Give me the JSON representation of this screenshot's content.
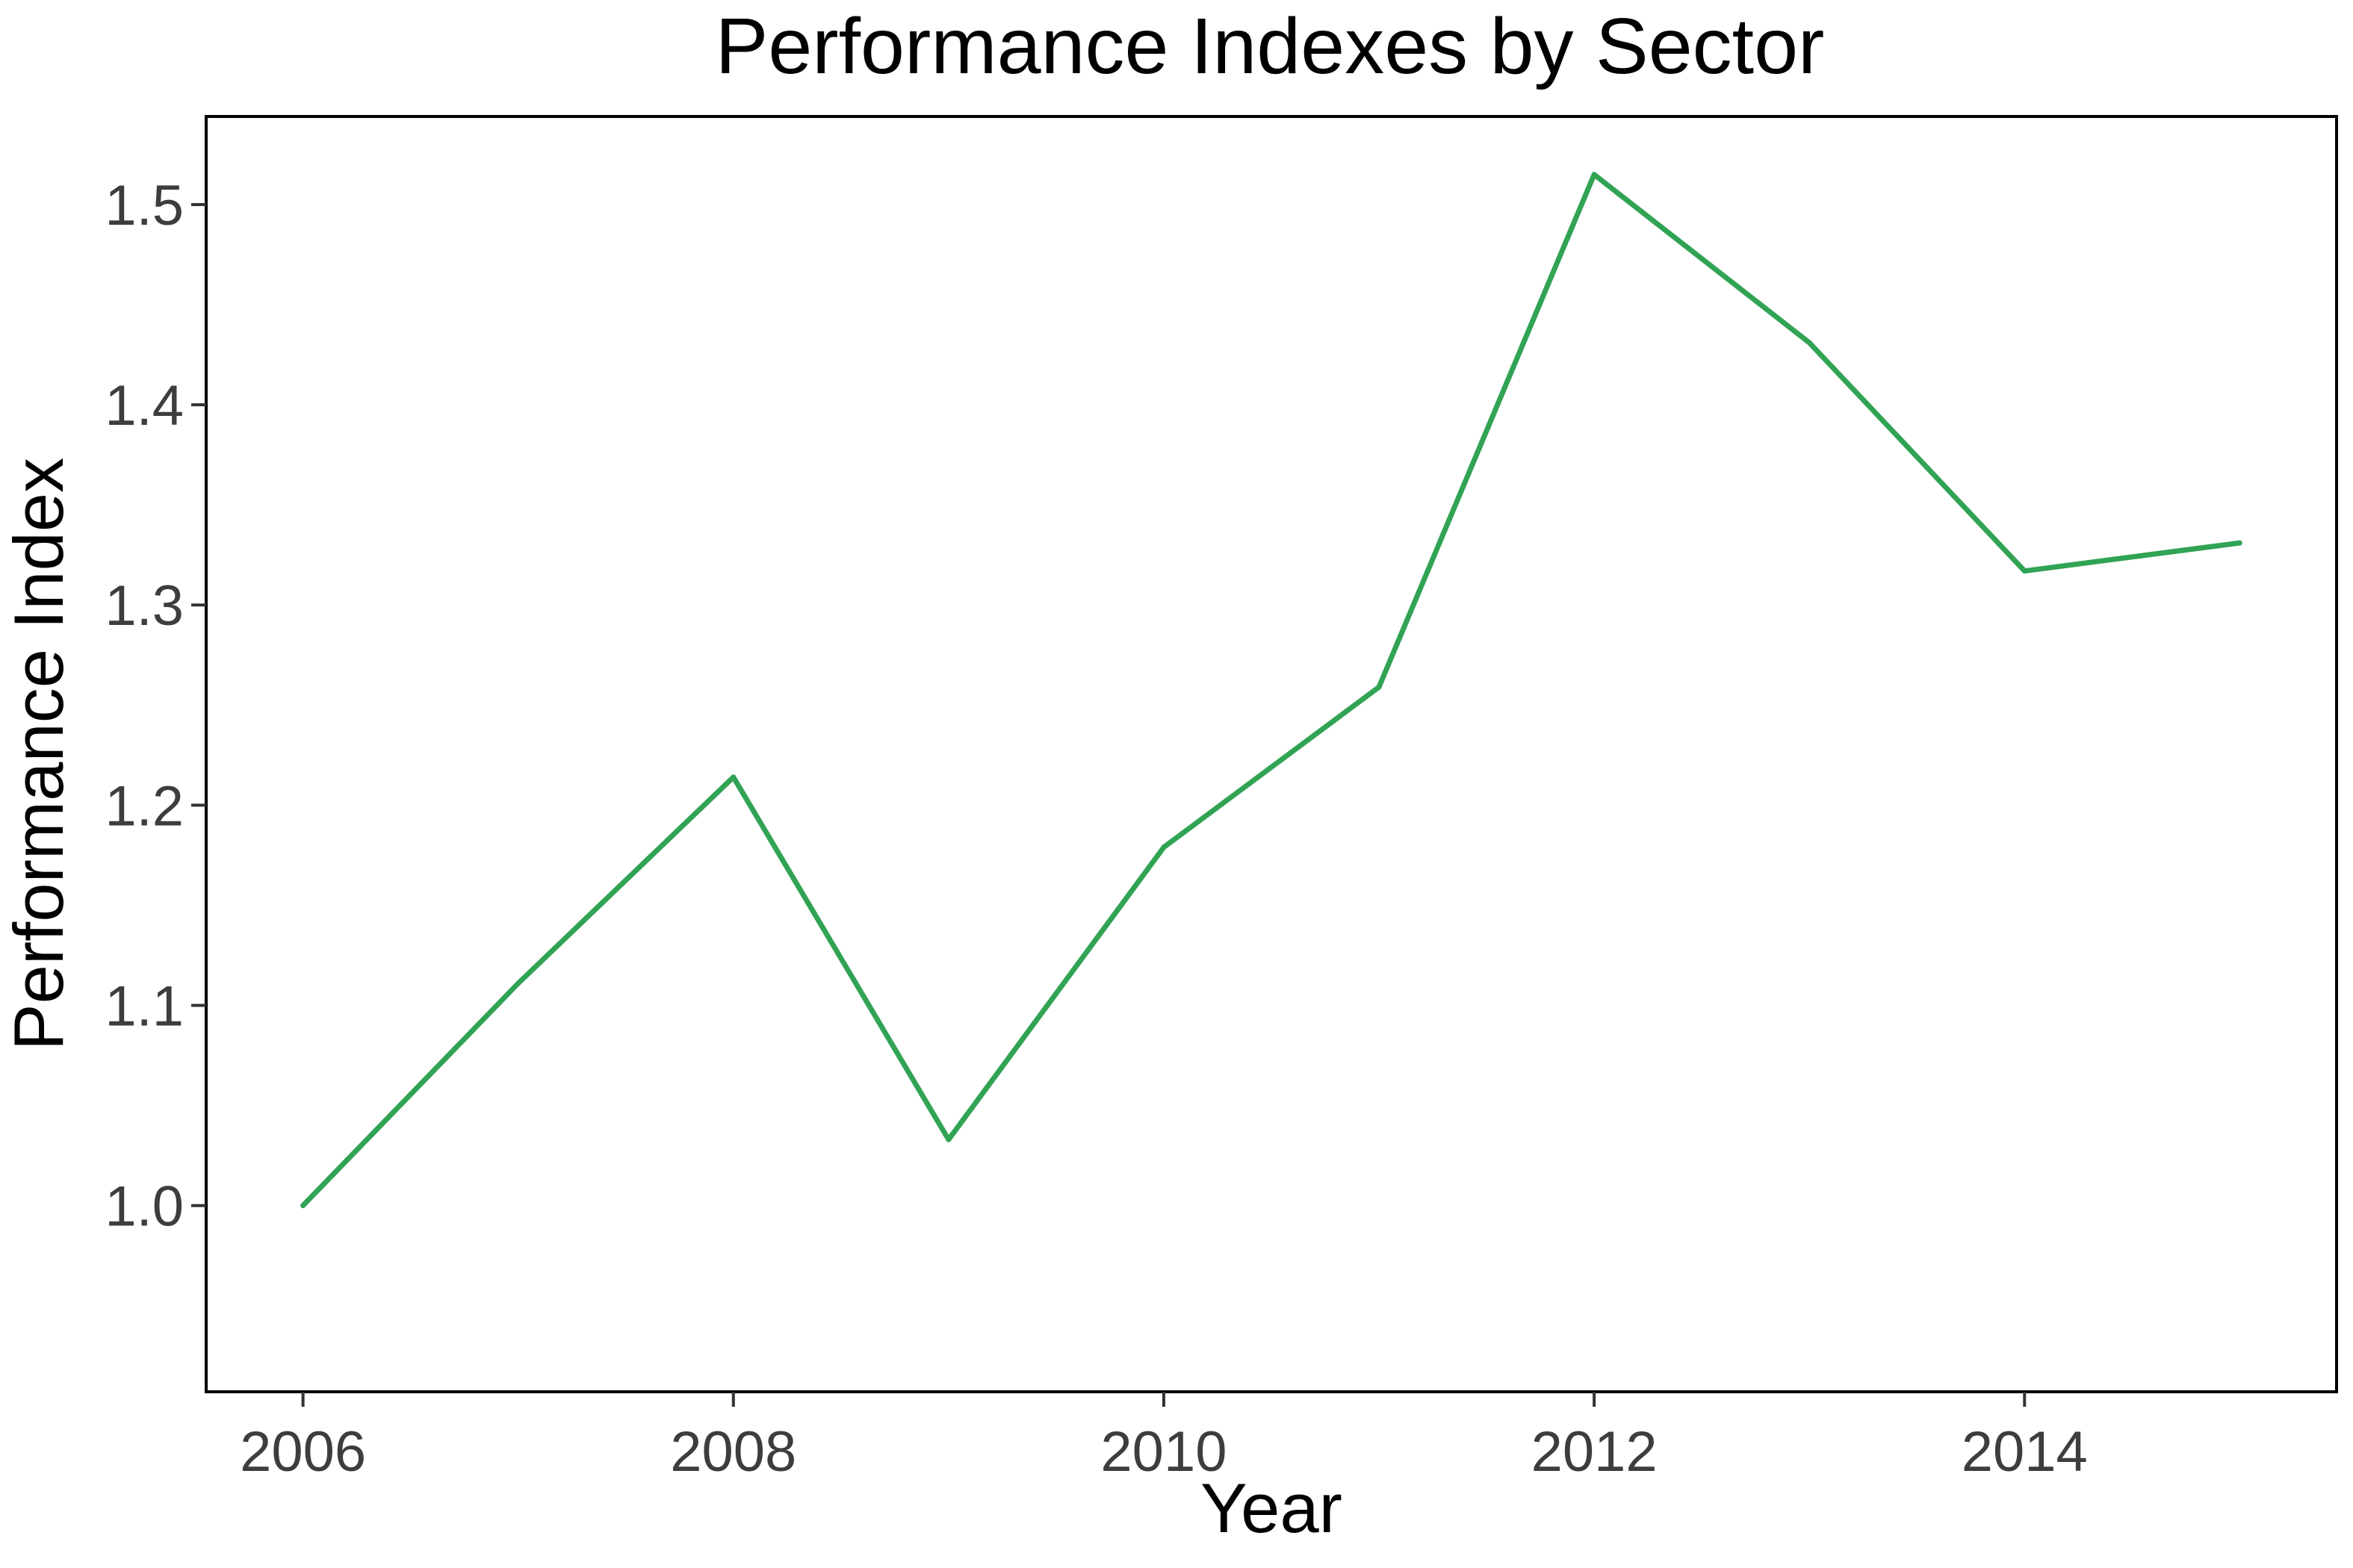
{
  "chart_data": {
    "type": "line",
    "title": "Performance Indexes by Sector",
    "xlabel": "Year",
    "ylabel": "Performance Index",
    "x_tick_labels": [
      "2006",
      "2008",
      "2010",
      "2012",
      "2014"
    ],
    "x_ticks": [
      2006,
      2008,
      2010,
      2012,
      2014
    ],
    "y_tick_labels": [
      "1.0",
      "1.1",
      "1.2",
      "1.3",
      "1.4",
      "1.5"
    ],
    "y_ticks": [
      1.0,
      1.1,
      1.2,
      1.3,
      1.4,
      1.5
    ],
    "xlim": [
      2005.55,
      2015.45
    ],
    "ylim": [
      0.907,
      1.544
    ],
    "grid": false,
    "legend": "none",
    "series": [
      {
        "color": "#31a354",
        "x": [
          2006,
          2007,
          2008,
          2009,
          2010,
          2011,
          2012,
          2013,
          2014,
          2015
        ],
        "y": [
          1.0,
          1.111,
          1.214,
          1.033,
          1.179,
          1.259,
          1.515,
          1.431,
          1.317,
          1.331
        ]
      }
    ]
  }
}
